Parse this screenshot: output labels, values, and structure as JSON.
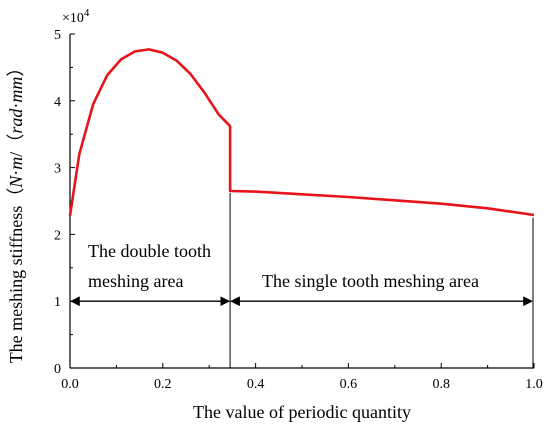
{
  "chart_data": {
    "type": "line",
    "xlabel": "The value of periodic quantity",
    "ylabel": {
      "prefix": "The meshing stiffness（",
      "unit_n": "N",
      "unit_dot": "·",
      "unit_m": "m",
      "unit_slash": "/（",
      "unit_rad": "rad",
      "unit_dot2": "·",
      "unit_mm": "mm",
      "suffix": "）"
    },
    "y_multiplier": {
      "base": "×10",
      "exponent": "4"
    },
    "xlim": [
      0,
      1.0
    ],
    "ylim": [
      0,
      5
    ],
    "x_ticks": [
      "0.0",
      "0.2",
      "0.4",
      "0.6",
      "0.8",
      "1.0"
    ],
    "y_ticks": [
      "0",
      "1",
      "2",
      "3",
      "4",
      "5"
    ],
    "x_tick_values": [
      0,
      0.2,
      0.4,
      0.6,
      0.8,
      1.0
    ],
    "y_tick_values": [
      0,
      1,
      2,
      3,
      4,
      5
    ],
    "series": [
      {
        "color": "#e8141b",
        "x": [
          0,
          0.02,
          0.05,
          0.08,
          0.11,
          0.14,
          0.17,
          0.2,
          0.23,
          0.26,
          0.29,
          0.32,
          0.345,
          0.345,
          0.4,
          0.5,
          0.6,
          0.7,
          0.8,
          0.9,
          1.0
        ],
        "y": [
          2.28,
          3.2,
          3.95,
          4.38,
          4.62,
          4.74,
          4.77,
          4.72,
          4.6,
          4.4,
          4.12,
          3.8,
          3.62,
          2.65,
          2.64,
          2.6,
          2.56,
          2.51,
          2.46,
          2.39,
          2.29
        ]
      }
    ],
    "divider_x": 0.345,
    "arrow_y": 1.0,
    "annotations": {
      "double_line1": "The double tooth",
      "double_line2": "meshing area",
      "single": "The single tooth meshing area"
    }
  }
}
